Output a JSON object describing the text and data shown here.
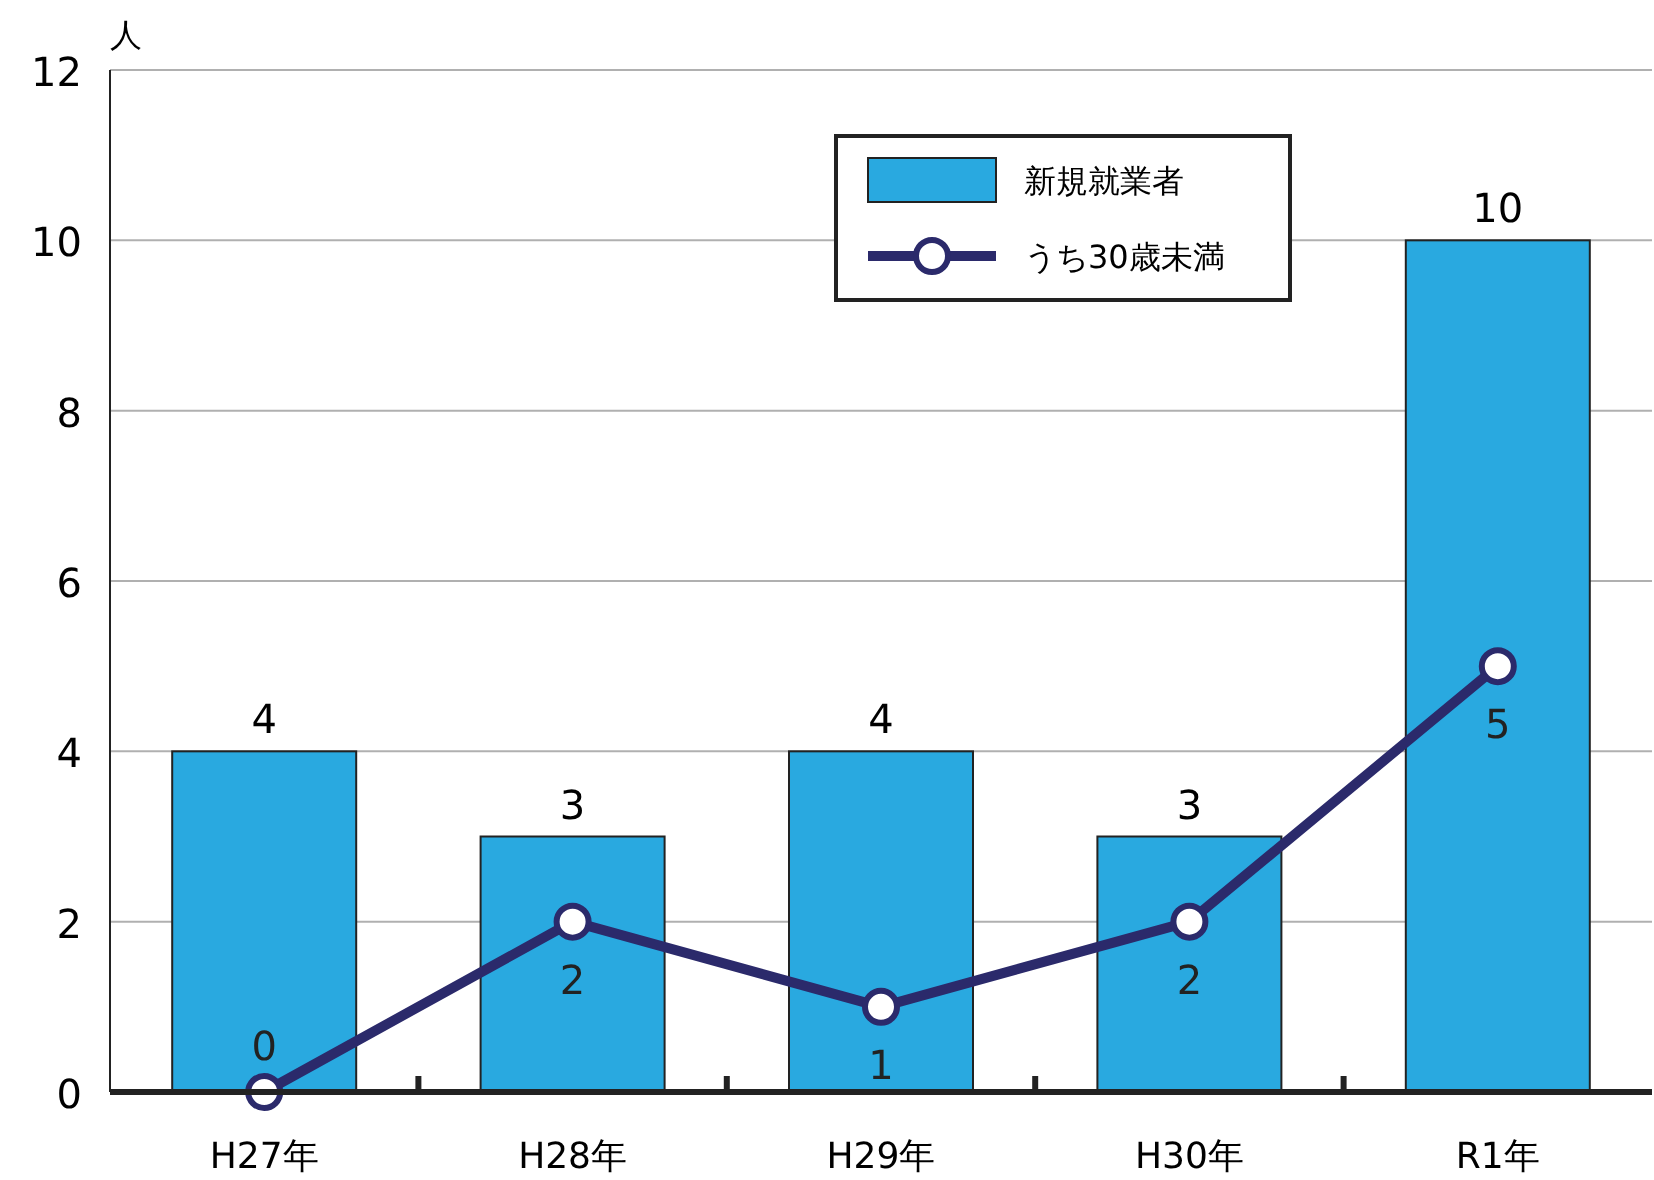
{
  "chart_data": {
    "type": "bar",
    "ylabel": "人",
    "categories": [
      "H27年",
      "H28年",
      "H29年",
      "H30年",
      "R1年"
    ],
    "series": [
      {
        "name": "新規就業者",
        "color": "#29a9e0",
        "values": [
          4,
          3,
          4,
          3,
          10
        ]
      },
      {
        "name": "うち30歳未満",
        "type": "line",
        "color": "#2b2a6b",
        "values": [
          0,
          2,
          1,
          2,
          5
        ],
        "marker": "circle"
      }
    ],
    "ylim": [
      0,
      12
    ],
    "yticks": [
      0,
      2,
      4,
      6,
      8,
      10,
      12
    ],
    "grid": "y",
    "legend": "top right",
    "data_labels": true
  }
}
